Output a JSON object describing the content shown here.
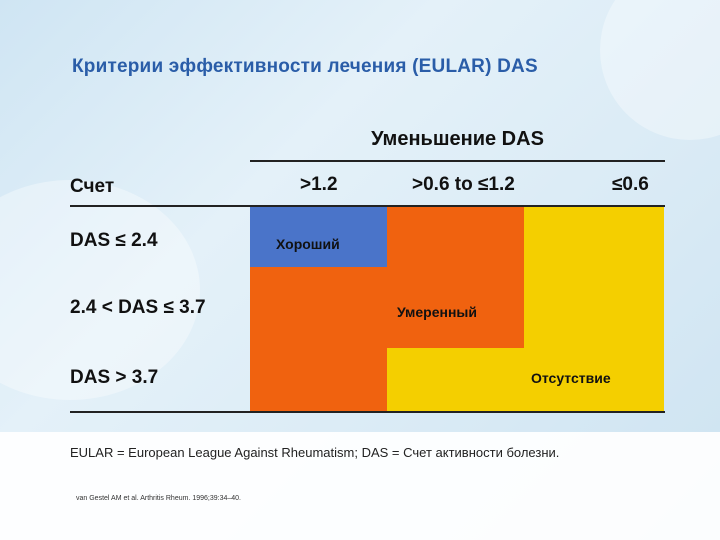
{
  "slide": {
    "title": "Критерии эффективности лечения (EULAR) DAS",
    "column_group_header": "Уменьшение DAS",
    "row_header": "Счет",
    "columns": [
      ">1.2",
      ">0.6 to ≤1.2",
      "≤0.6"
    ],
    "rows": [
      "DAS ≤ 2.4",
      "2.4 < DAS ≤ 3.7",
      "DAS > 3.7"
    ],
    "responses": {
      "good": "Хороший",
      "moderate": "Умеренный",
      "none": "Отсутствие"
    },
    "footnote": "EULAR = European League Against Rheumatism; DAS = Счет активности болезни.",
    "reference": "van Gestel AM et al. Arthritis Rheum. 1996;39:34–40."
  },
  "colors": {
    "title": "#2a5da8",
    "good": "#4a74c9",
    "moderate": "#f0620f",
    "none": "#f4cf00"
  }
}
